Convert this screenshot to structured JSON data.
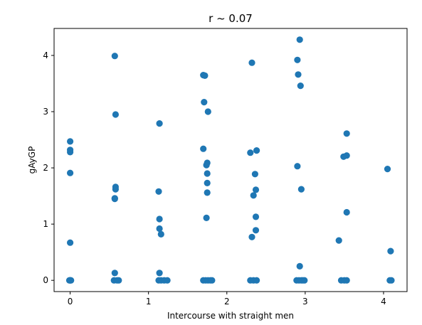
{
  "chart_data": {
    "type": "scatter",
    "title": "r ~ 0.07",
    "xlabel": "Intercourse with straight men",
    "ylabel": "gAyGP",
    "xlim": [
      -0.205,
      4.3
    ],
    "ylim": [
      -0.2,
      4.48
    ],
    "xticks": [
      0,
      1,
      2,
      3,
      4
    ],
    "yticks": [
      0,
      1,
      2,
      3,
      4
    ],
    "grid": false,
    "marker_color": "#1f77b4",
    "series": [
      {
        "points": [
          [
            0.0,
            2.47
          ],
          [
            0.0,
            2.32
          ],
          [
            0.0,
            2.28
          ],
          [
            0.0,
            1.91
          ],
          [
            0.0,
            0.67
          ],
          [
            0.0,
            0.0
          ],
          [
            0.0,
            0.0
          ],
          [
            0.01,
            0.0
          ],
          [
            -0.01,
            0.0
          ],
          [
            0.57,
            3.99
          ],
          [
            0.58,
            2.95
          ],
          [
            0.58,
            1.66
          ],
          [
            0.58,
            1.62
          ],
          [
            0.57,
            1.46
          ],
          [
            0.57,
            1.45
          ],
          [
            0.57,
            0.13
          ],
          [
            0.56,
            0.0
          ],
          [
            0.6,
            0.0
          ],
          [
            0.62,
            0.0
          ],
          [
            1.14,
            2.79
          ],
          [
            1.13,
            1.58
          ],
          [
            1.14,
            1.09
          ],
          [
            1.14,
            0.92
          ],
          [
            1.16,
            0.82
          ],
          [
            1.14,
            0.13
          ],
          [
            1.13,
            0.0
          ],
          [
            1.16,
            0.0
          ],
          [
            1.2,
            0.0
          ],
          [
            1.24,
            0.0
          ],
          [
            1.7,
            3.65
          ],
          [
            1.72,
            3.64
          ],
          [
            1.71,
            3.17
          ],
          [
            1.76,
            3.0
          ],
          [
            1.7,
            2.34
          ],
          [
            1.75,
            2.09
          ],
          [
            1.74,
            2.05
          ],
          [
            1.75,
            1.9
          ],
          [
            1.75,
            1.73
          ],
          [
            1.75,
            1.56
          ],
          [
            1.74,
            1.11
          ],
          [
            1.7,
            0.0
          ],
          [
            1.73,
            0.0
          ],
          [
            1.76,
            0.0
          ],
          [
            1.79,
            0.0
          ],
          [
            1.81,
            0.0
          ],
          [
            2.32,
            3.87
          ],
          [
            2.38,
            2.31
          ],
          [
            2.3,
            2.27
          ],
          [
            2.36,
            1.89
          ],
          [
            2.37,
            1.61
          ],
          [
            2.34,
            1.51
          ],
          [
            2.37,
            1.13
          ],
          [
            2.37,
            0.89
          ],
          [
            2.32,
            0.77
          ],
          [
            2.3,
            0.0
          ],
          [
            2.34,
            0.0
          ],
          [
            2.38,
            0.0
          ],
          [
            2.93,
            4.28
          ],
          [
            2.9,
            3.92
          ],
          [
            2.91,
            3.66
          ],
          [
            2.94,
            3.46
          ],
          [
            2.9,
            2.03
          ],
          [
            2.95,
            1.62
          ],
          [
            2.93,
            0.25
          ],
          [
            2.89,
            0.0
          ],
          [
            2.92,
            0.0
          ],
          [
            2.95,
            0.0
          ],
          [
            2.97,
            0.0
          ],
          [
            2.99,
            0.0
          ],
          [
            3.53,
            2.61
          ],
          [
            3.53,
            2.22
          ],
          [
            3.49,
            2.2
          ],
          [
            3.53,
            1.21
          ],
          [
            3.43,
            0.71
          ],
          [
            3.46,
            0.0
          ],
          [
            3.5,
            0.0
          ],
          [
            3.53,
            0.0
          ],
          [
            4.05,
            1.98
          ],
          [
            4.09,
            0.52
          ],
          [
            4.08,
            0.0
          ],
          [
            4.1,
            0.0
          ]
        ]
      }
    ]
  }
}
